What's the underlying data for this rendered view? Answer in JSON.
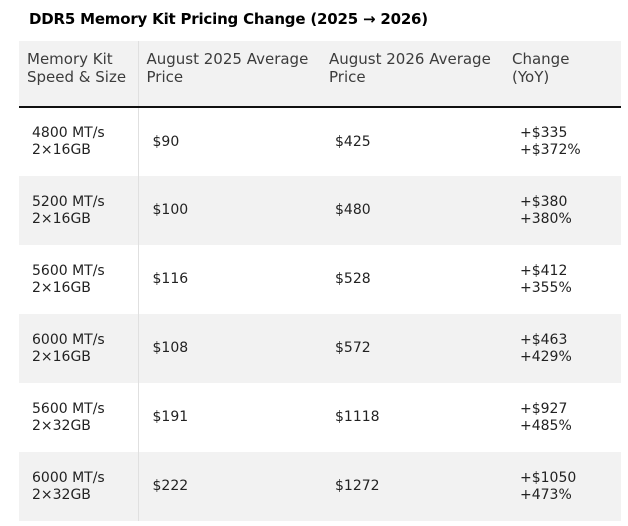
{
  "title": "DDR5 Memory Kit Pricing Change (2025 → 2026)",
  "table": {
    "headers": [
      [
        "Memory Kit",
        "Speed & Size"
      ],
      [
        "August 2025 Average",
        "Price"
      ],
      [
        "August 2026 Average",
        "Price"
      ],
      [
        "Change",
        "(YoY)"
      ]
    ],
    "rows": [
      {
        "kit": [
          "4800 MT/s",
          "2×16GB"
        ],
        "aug2025": "$90",
        "aug2026": "$425",
        "change": [
          "+$335",
          "+$372%"
        ]
      },
      {
        "kit": [
          "5200 MT/s",
          "2×16GB"
        ],
        "aug2025": "$100",
        "aug2026": "$480",
        "change": [
          "+$380",
          "+380%"
        ]
      },
      {
        "kit": [
          "5600 MT/s",
          "2×16GB"
        ],
        "aug2025": "$116",
        "aug2026": "$528",
        "change": [
          "+$412",
          "+355%"
        ]
      },
      {
        "kit": [
          "6000 MT/s",
          "2×16GB"
        ],
        "aug2025": "$108",
        "aug2026": "$572",
        "change": [
          "+$463",
          "+429%"
        ]
      },
      {
        "kit": [
          "5600 MT/s",
          "2×32GB"
        ],
        "aug2025": "$191",
        "aug2026": "$1118",
        "change": [
          "+$927",
          "+485%"
        ]
      },
      {
        "kit": [
          "6000 MT/s",
          "2×32GB"
        ],
        "aug2025": "$222",
        "aug2026": "$1272",
        "change": [
          "+$1050",
          "+473%"
        ]
      }
    ]
  }
}
